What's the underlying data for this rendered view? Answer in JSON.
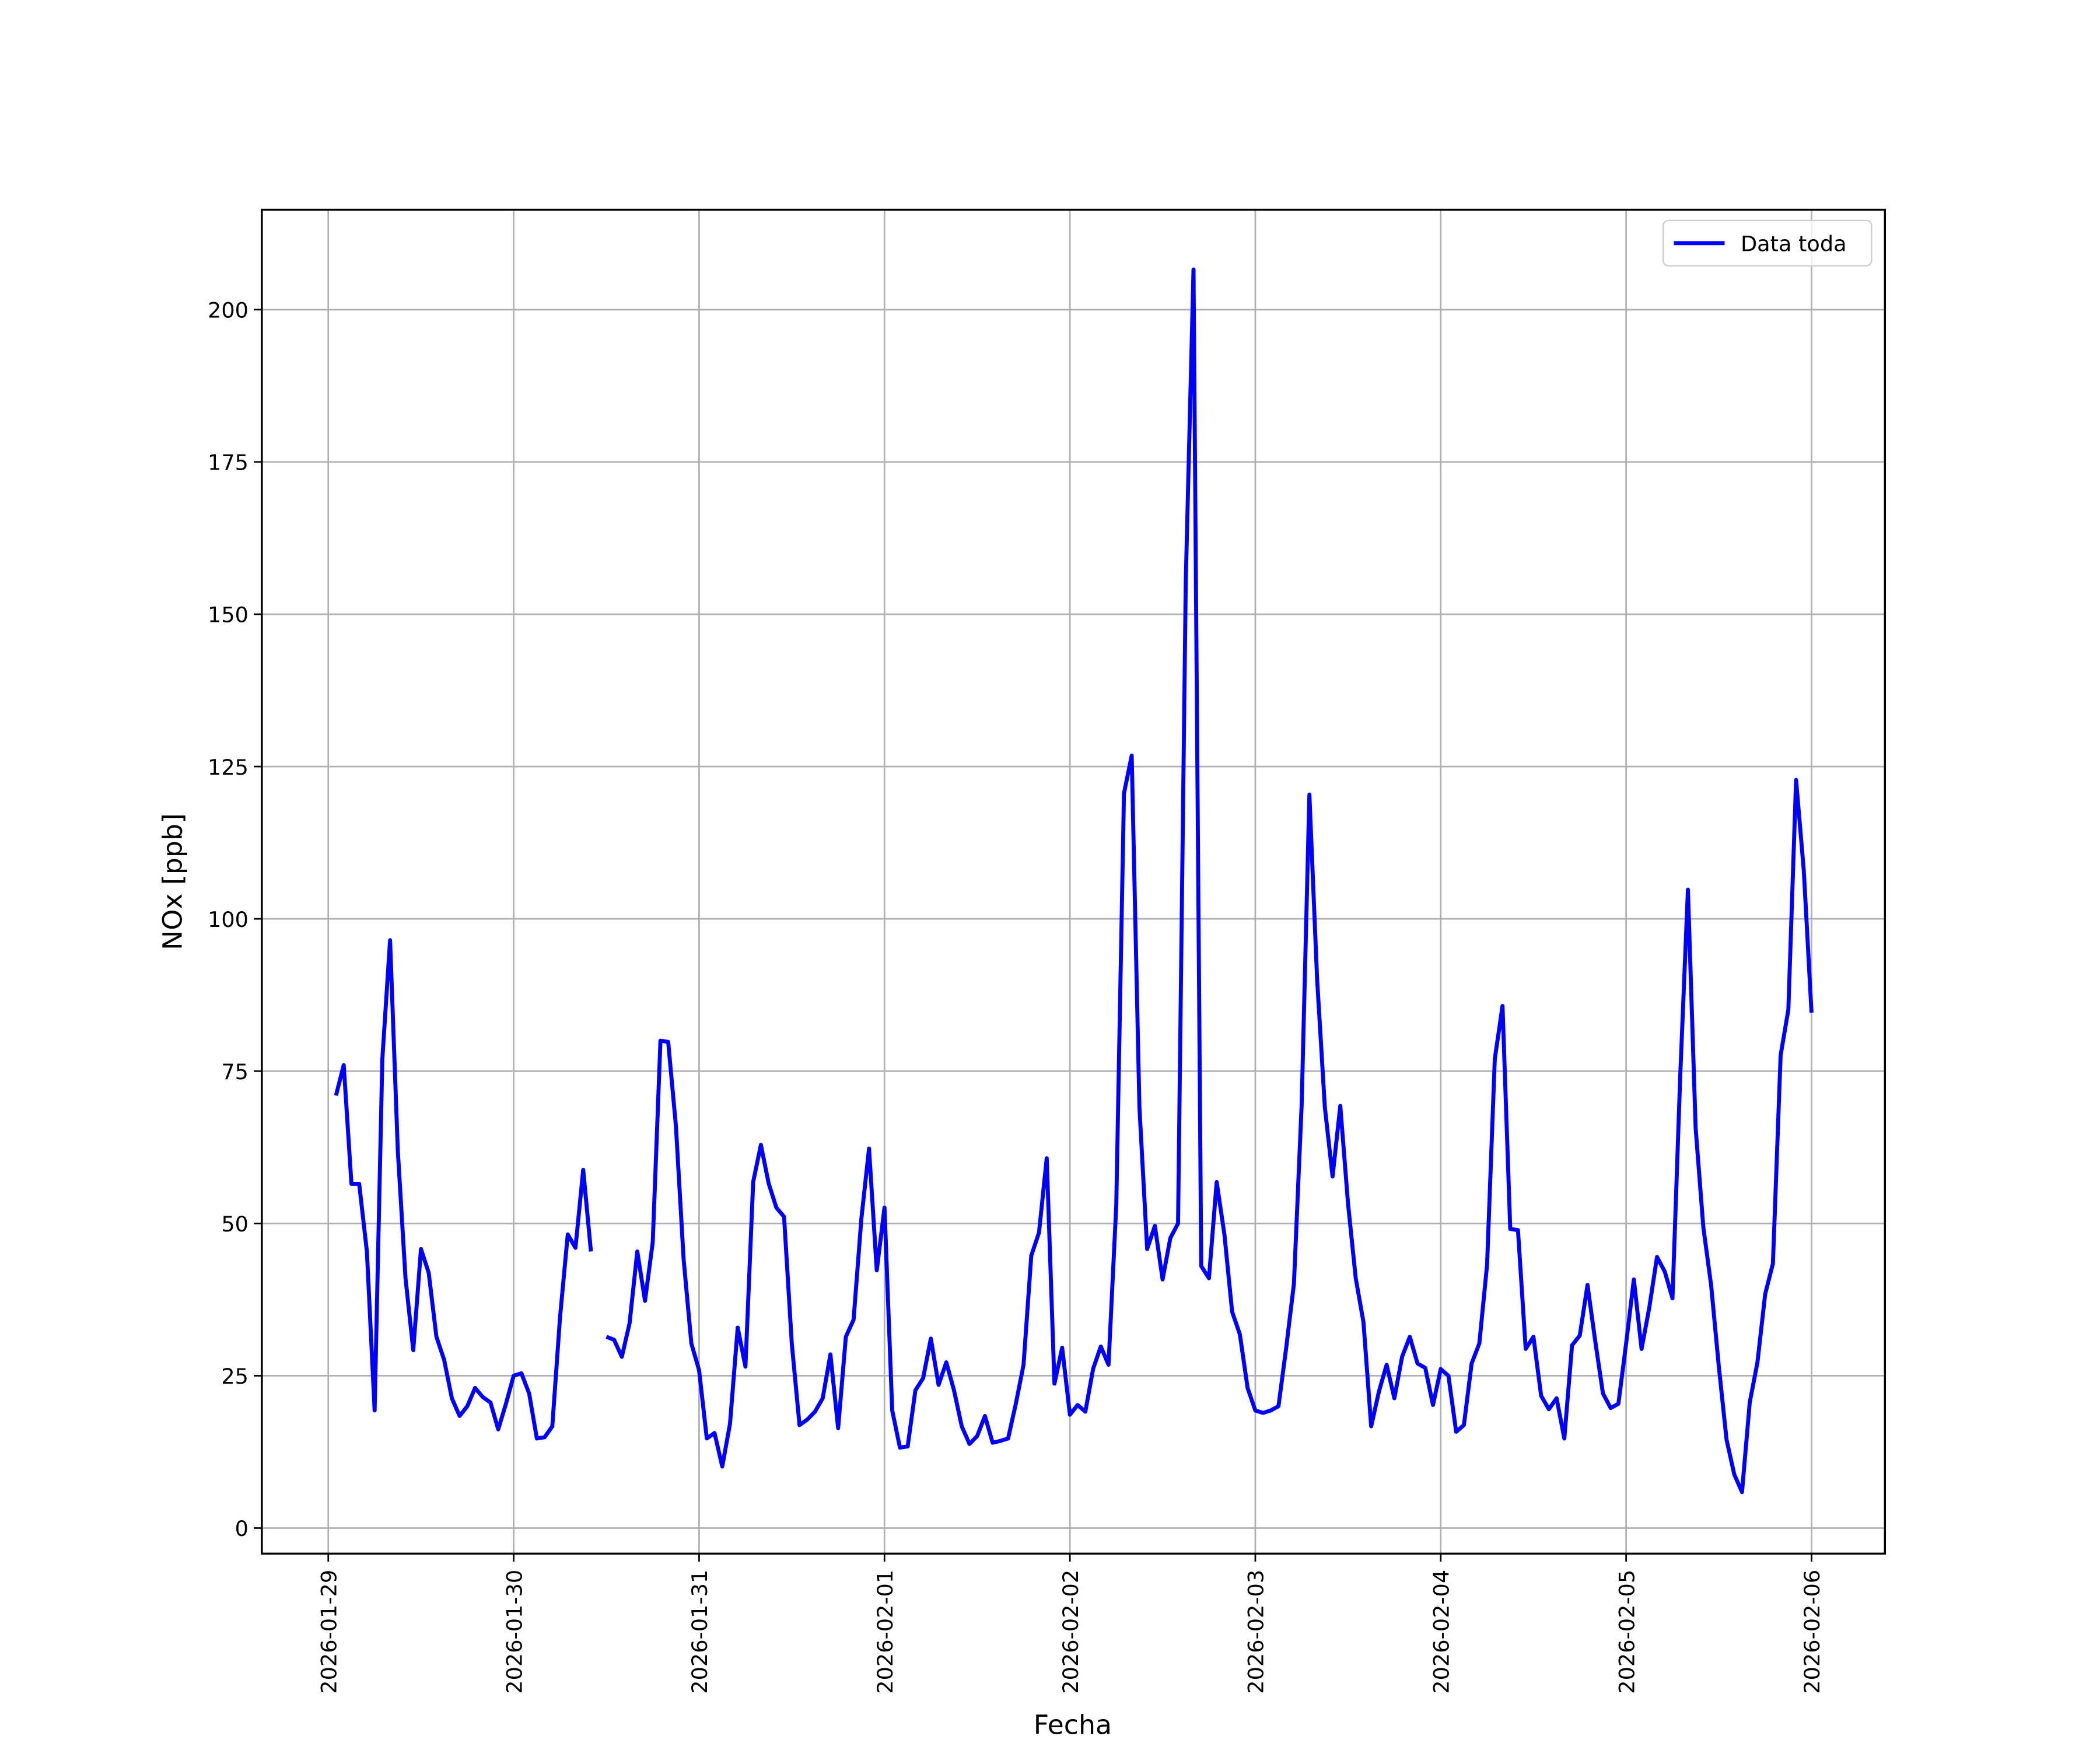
{
  "chart_data": {
    "type": "line",
    "xlabel": "Fecha",
    "ylabel": "NOx [ppb]",
    "x": [
      "2026-01-29 01:00",
      "2026-01-29 02:00",
      "2026-01-29 03:00",
      "2026-01-29 04:00",
      "2026-01-29 05:00",
      "2026-01-29 06:00",
      "2026-01-29 07:00",
      "2026-01-29 08:00",
      "2026-01-29 09:00",
      "2026-01-29 10:00",
      "2026-01-29 11:00",
      "2026-01-29 12:00",
      "2026-01-29 13:00",
      "2026-01-29 14:00",
      "2026-01-29 15:00",
      "2026-01-29 16:00",
      "2026-01-29 17:00",
      "2026-01-29 18:00",
      "2026-01-29 19:00",
      "2026-01-29 20:00",
      "2026-01-29 21:00",
      "2026-01-29 22:00",
      "2026-01-29 23:00",
      "2026-01-30 00:00",
      "2026-01-30 01:00",
      "2026-01-30 02:00",
      "2026-01-30 03:00",
      "2026-01-30 04:00",
      "2026-01-30 05:00",
      "2026-01-30 06:00",
      "2026-01-30 07:00",
      "2026-01-30 08:00",
      "2026-01-30 09:00",
      "2026-01-30 10:00",
      "2026-01-30 11:00",
      "2026-01-30 12:00",
      "2026-01-30 13:00",
      "2026-01-30 14:00",
      "2026-01-30 15:00",
      "2026-01-30 16:00",
      "2026-01-30 17:00",
      "2026-01-30 18:00",
      "2026-01-30 19:00",
      "2026-01-30 20:00",
      "2026-01-30 21:00",
      "2026-01-30 22:00",
      "2026-01-30 23:00",
      "2026-01-31 00:00",
      "2026-01-31 01:00",
      "2026-01-31 02:00",
      "2026-01-31 03:00",
      "2026-01-31 04:00",
      "2026-01-31 05:00",
      "2026-01-31 06:00",
      "2026-01-31 07:00",
      "2026-01-31 08:00",
      "2026-01-31 09:00",
      "2026-01-31 10:00",
      "2026-01-31 11:00",
      "2026-01-31 12:00",
      "2026-01-31 13:00",
      "2026-01-31 14:00",
      "2026-01-31 15:00",
      "2026-01-31 16:00",
      "2026-01-31 17:00",
      "2026-01-31 18:00",
      "2026-01-31 19:00",
      "2026-01-31 20:00",
      "2026-01-31 21:00",
      "2026-01-31 22:00",
      "2026-01-31 23:00",
      "2026-02-01 00:00",
      "2026-02-01 01:00",
      "2026-02-01 02:00",
      "2026-02-01 03:00",
      "2026-02-01 04:00",
      "2026-02-01 05:00",
      "2026-02-01 06:00",
      "2026-02-01 07:00",
      "2026-02-01 08:00",
      "2026-02-01 09:00",
      "2026-02-01 10:00",
      "2026-02-01 11:00",
      "2026-02-01 12:00",
      "2026-02-01 13:00",
      "2026-02-01 14:00",
      "2026-02-01 15:00",
      "2026-02-01 16:00",
      "2026-02-01 17:00",
      "2026-02-01 18:00",
      "2026-02-01 19:00",
      "2026-02-01 20:00",
      "2026-02-01 21:00",
      "2026-02-01 22:00",
      "2026-02-01 23:00",
      "2026-02-02 00:00",
      "2026-02-02 01:00",
      "2026-02-02 02:00",
      "2026-02-02 03:00",
      "2026-02-02 04:00",
      "2026-02-02 05:00",
      "2026-02-02 06:00",
      "2026-02-02 07:00",
      "2026-02-02 08:00",
      "2026-02-02 09:00",
      "2026-02-02 10:00",
      "2026-02-02 11:00",
      "2026-02-02 12:00",
      "2026-02-02 13:00",
      "2026-02-02 14:00",
      "2026-02-02 15:00",
      "2026-02-02 16:00",
      "2026-02-02 17:00",
      "2026-02-02 18:00",
      "2026-02-02 19:00",
      "2026-02-02 20:00",
      "2026-02-02 21:00",
      "2026-02-02 22:00",
      "2026-02-02 23:00",
      "2026-02-03 00:00",
      "2026-02-03 01:00",
      "2026-02-03 02:00",
      "2026-02-03 03:00",
      "2026-02-03 04:00",
      "2026-02-03 05:00",
      "2026-02-03 06:00",
      "2026-02-03 07:00",
      "2026-02-03 08:00",
      "2026-02-03 09:00",
      "2026-02-03 10:00",
      "2026-02-03 11:00",
      "2026-02-03 12:00",
      "2026-02-03 13:00",
      "2026-02-03 14:00",
      "2026-02-03 15:00",
      "2026-02-03 16:00",
      "2026-02-03 17:00",
      "2026-02-03 18:00",
      "2026-02-03 19:00",
      "2026-02-03 20:00",
      "2026-02-03 21:00",
      "2026-02-03 22:00",
      "2026-02-03 23:00",
      "2026-02-04 00:00",
      "2026-02-04 01:00",
      "2026-02-04 02:00",
      "2026-02-04 03:00",
      "2026-02-04 04:00",
      "2026-02-04 05:00",
      "2026-02-04 06:00",
      "2026-02-04 07:00",
      "2026-02-04 08:00",
      "2026-02-04 09:00",
      "2026-02-04 10:00",
      "2026-02-04 11:00",
      "2026-02-04 12:00",
      "2026-02-04 13:00",
      "2026-02-04 14:00",
      "2026-02-04 15:00",
      "2026-02-04 16:00",
      "2026-02-04 17:00",
      "2026-02-04 18:00",
      "2026-02-04 19:00",
      "2026-02-04 20:00",
      "2026-02-04 21:00",
      "2026-02-04 22:00",
      "2026-02-04 23:00",
      "2026-02-05 00:00",
      "2026-02-05 01:00",
      "2026-02-05 02:00",
      "2026-02-05 03:00",
      "2026-02-05 04:00",
      "2026-02-05 05:00",
      "2026-02-05 06:00",
      "2026-02-05 07:00",
      "2026-02-05 08:00",
      "2026-02-05 09:00",
      "2026-02-05 10:00",
      "2026-02-05 11:00",
      "2026-02-05 12:00",
      "2026-02-05 13:00",
      "2026-02-05 14:00",
      "2026-02-05 15:00",
      "2026-02-05 16:00",
      "2026-02-05 17:00",
      "2026-02-05 18:00",
      "2026-02-05 19:00",
      "2026-02-05 20:00",
      "2026-02-05 21:00",
      "2026-02-05 22:00",
      "2026-02-05 23:00",
      "2026-02-06 00:00"
    ],
    "series": [
      {
        "name": "Data toda",
        "color": "#0000ff",
        "values": [
          71,
          76,
          56.5,
          56.5,
          45.4,
          19.3,
          77,
          96.5,
          62,
          41,
          29.2,
          45.8,
          41.9,
          31.4,
          27.6,
          21.3,
          18.4,
          20,
          23,
          21.5,
          20.6,
          16.2,
          20.4,
          25,
          25.4,
          22.1,
          14.7,
          14.9,
          16.7,
          34.6,
          48.2,
          46,
          58.8,
          45.4,
          null,
          31.4,
          30.9,
          28.1,
          33.6,
          45.4,
          37.3,
          46.9,
          80,
          79.8,
          66,
          44.1,
          30.3,
          25.9,
          14.7,
          15.6,
          10.1,
          17.1,
          32.9,
          26.5,
          56.8,
          62.9,
          56.6,
          52.6,
          51.1,
          30.3,
          16.9,
          17.8,
          19.1,
          21.3,
          28.5,
          16.4,
          31.4,
          34.2,
          50.7,
          62.3,
          42.3,
          52.6,
          19.3,
          13.2,
          13.4,
          22.6,
          24.6,
          31.1,
          23.5,
          27.2,
          22.6,
          16.7,
          13.8,
          15.1,
          18.4,
          14,
          14.3,
          14.7,
          20.4,
          26.8,
          44.7,
          48.5,
          60.7,
          23.7,
          29.6,
          18.6,
          20.2,
          19.1,
          26.1,
          29.8,
          26.8,
          52.9,
          120.6,
          126.8,
          69.1,
          45.8,
          49.6,
          40.8,
          47.6,
          50,
          155.5,
          206.6,
          43,
          41,
          56.8,
          48.2,
          35.5,
          31.8,
          23,
          19.3,
          18.9,
          19.3,
          20,
          29.6,
          40.1,
          69.5,
          120.4,
          90.1,
          69.1,
          57.7,
          69.3,
          53.3,
          41,
          33.8,
          16.7,
          22.4,
          26.8,
          21.3,
          28.1,
          31.4,
          27,
          26.3,
          20.2,
          26.1,
          25,
          15.8,
          16.9,
          27,
          30.3,
          43.2,
          77,
          85.7,
          49.1,
          48.9,
          29.4,
          31.4,
          21.7,
          19.5,
          21.3,
          14.7,
          30,
          31.6,
          39.9,
          30.7,
          22.1,
          19.7,
          20.4,
          30.3,
          40.8,
          29.4,
          36.2,
          44.5,
          42.1,
          37.7,
          74.1,
          104.8,
          65.6,
          49.3,
          39.9,
          26.5,
          14.5,
          8.8,
          5.9,
          20.6,
          27.2,
          38.4,
          43.4,
          77.6,
          85.1,
          122.8,
          107.9,
          84.6
        ]
      }
    ],
    "xlim": [
      "2026-01-28 15:24",
      "2026-02-06 09:30"
    ],
    "xticks": [
      "2026-01-29",
      "2026-01-30",
      "2026-01-31",
      "2026-02-01",
      "2026-02-02",
      "2026-02-03",
      "2026-02-04",
      "2026-02-05",
      "2026-02-06"
    ],
    "ylim": [
      -4.2,
      216.4
    ],
    "yticks": [
      0,
      25,
      50,
      75,
      100,
      125,
      150,
      175,
      200
    ],
    "grid": true,
    "legend": "upper right"
  }
}
